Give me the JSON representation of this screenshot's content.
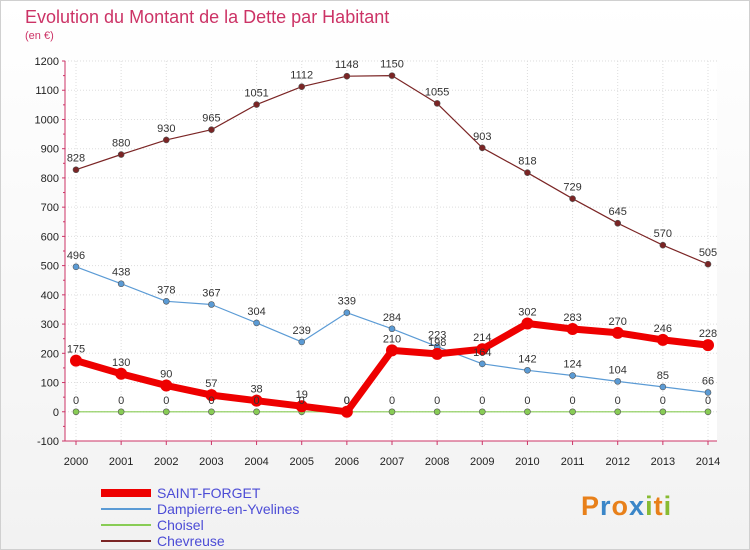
{
  "chart_data": {
    "type": "line",
    "title": "Evolution du Montant de la Dette par Habitant",
    "subtitle": "(en €)",
    "xlabel": "",
    "ylabel": "",
    "x": [
      "2000",
      "2001",
      "2002",
      "2003",
      "2004",
      "2005",
      "2006",
      "2007",
      "2008",
      "2009",
      "2010",
      "2011",
      "2012",
      "2013",
      "2014"
    ],
    "ylim": [
      -100,
      1200
    ],
    "yticks": [
      "-100",
      "0",
      "100",
      "200",
      "300",
      "400",
      "500",
      "600",
      "700",
      "800",
      "900",
      "1000",
      "1100",
      "1200"
    ],
    "grid": "horizontal dashed",
    "legend_position": "bottom-left",
    "series": [
      {
        "name": "SAINT-FORGET",
        "color": "#ee0000",
        "values": [
          175,
          130,
          90,
          57,
          38,
          19,
          0,
          210,
          198,
          214,
          302,
          283,
          270,
          246,
          228
        ],
        "labels": [
          "175",
          "130",
          "90",
          "57",
          "38",
          "19",
          "0",
          "210",
          "198",
          "214",
          "302",
          "283",
          "270",
          "246",
          "228"
        ]
      },
      {
        "name": "Dampierre-en-Yvelines",
        "color": "#5b9bd5",
        "values": [
          496,
          438,
          378,
          367,
          304,
          239,
          339,
          284,
          223,
          164,
          142,
          124,
          104,
          85,
          66
        ],
        "labels": [
          "496",
          "438",
          "378",
          "367",
          "304",
          "239",
          "339",
          "284",
          "223",
          "164",
          "142",
          "124",
          "104",
          "85",
          "66"
        ]
      },
      {
        "name": "Choisel",
        "color": "#88cc55",
        "values": [
          0,
          0,
          0,
          0,
          0,
          0,
          0,
          0,
          0,
          0,
          0,
          0,
          0,
          0,
          0
        ],
        "labels": [
          "0",
          "0",
          "0",
          "0",
          "0",
          "0",
          "0",
          "0",
          "0",
          "0",
          "0",
          "0",
          "0",
          "0",
          "0"
        ]
      },
      {
        "name": "Chevreuse",
        "color": "#7b2525",
        "values": [
          828,
          880,
          930,
          965,
          1051,
          1112,
          1148,
          1150,
          1055,
          903,
          818,
          729,
          645,
          570,
          505
        ],
        "labels": [
          "828",
          "880",
          "930",
          "965",
          "1051",
          "1112",
          "1148",
          "1150",
          "1055",
          "903",
          "818",
          "729",
          "645",
          "570",
          "505"
        ]
      }
    ]
  },
  "logo": {
    "letters": [
      "P",
      "r",
      "o",
      "x",
      "i",
      "t",
      "i"
    ],
    "colors": [
      "#e8801a",
      "#3a86c8",
      "#e8801a",
      "#3a86c8",
      "#88bb33",
      "#e8801a",
      "#88bb33"
    ]
  }
}
